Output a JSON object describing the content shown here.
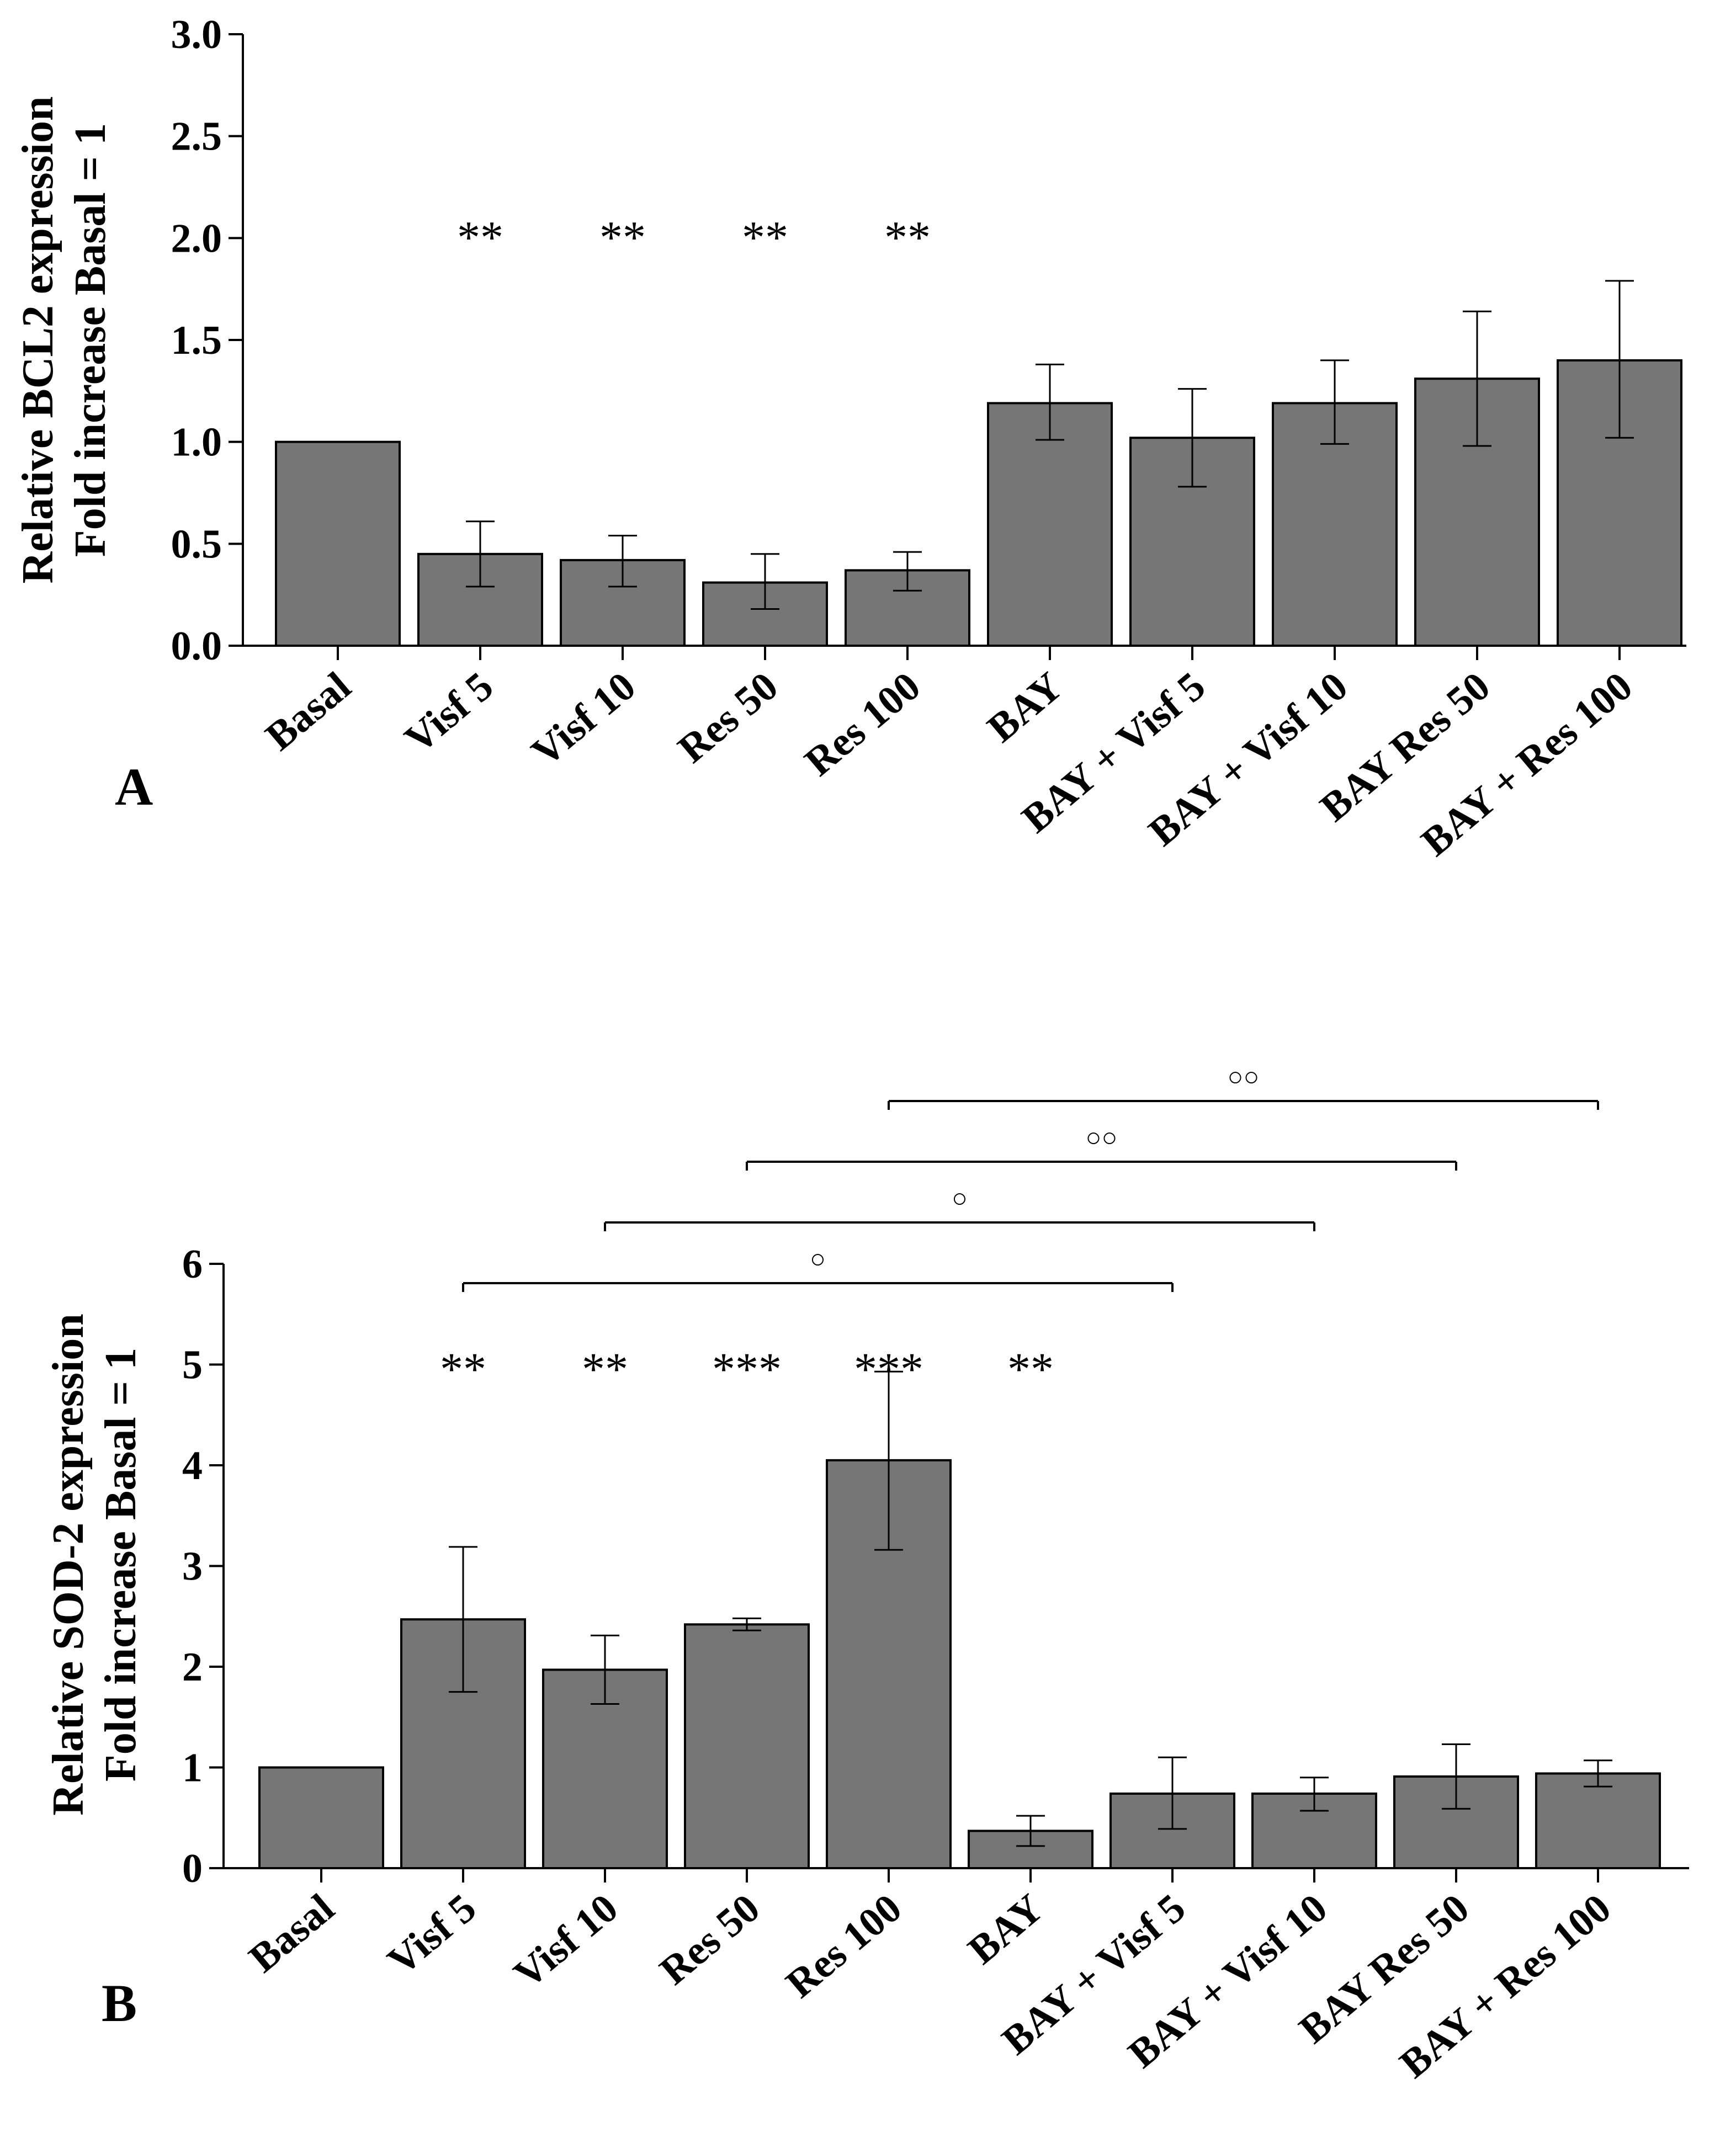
{
  "colors": {
    "bar_fill": "#767676",
    "bar_stroke": "#000000",
    "axis": "#000000"
  },
  "chart_data": [
    {
      "type": "bar",
      "panel_label": "A",
      "ylabel_line1": "Relative BCL2 expression",
      "ylabel_line2": "Fold increase Basal = 1",
      "ylim": [
        0,
        3.0
      ],
      "yticks": [
        0.0,
        0.5,
        1.0,
        1.5,
        2.0,
        2.5,
        3.0
      ],
      "ytick_labels": [
        "0.0",
        "0.5",
        "1.0",
        "1.5",
        "2.0",
        "2.5",
        "3.0"
      ],
      "categories": [
        "Basal",
        "Visf 5",
        "Visf 10",
        "Res 50",
        "Res 100",
        "BAY",
        "BAY + Visf 5",
        "BAY + Visf 10",
        "BAY Res 50",
        "BAY + Res 100"
      ],
      "values": [
        1.0,
        0.45,
        0.42,
        0.31,
        0.37,
        1.19,
        1.02,
        1.19,
        1.31,
        1.4
      ],
      "error_low": [
        null,
        0.29,
        0.29,
        0.18,
        0.27,
        1.01,
        0.78,
        0.99,
        0.98,
        1.02
      ],
      "error_high": [
        null,
        0.61,
        0.54,
        0.45,
        0.46,
        1.38,
        1.26,
        1.4,
        1.64,
        1.79
      ],
      "significance": [
        "",
        "**",
        "**",
        "**",
        "**",
        "",
        "",
        "",
        "",
        ""
      ],
      "significance_y": 2.05,
      "brackets": []
    },
    {
      "type": "bar",
      "panel_label": "B",
      "ylabel_line1": "Relative SOD-2 expression",
      "ylabel_line2": "Fold increase Basal = 1",
      "ylim": [
        0,
        6
      ],
      "yticks": [
        0,
        1,
        2,
        3,
        4,
        5,
        6
      ],
      "ytick_labels": [
        "0",
        "1",
        "2",
        "3",
        "4",
        "5",
        "6"
      ],
      "categories": [
        "Basal",
        "Visf 5",
        "Visf 10",
        "Res 50",
        "Res 100",
        "BAY",
        "BAY + Visf 5",
        "BAY + Visf 10",
        "BAY Res 50",
        "BAY + Res 100"
      ],
      "values": [
        1.0,
        2.47,
        1.97,
        2.42,
        4.05,
        0.37,
        0.74,
        0.74,
        0.91,
        0.94
      ],
      "error_low": [
        null,
        1.75,
        1.63,
        2.36,
        3.16,
        0.22,
        0.39,
        0.57,
        0.59,
        0.81
      ],
      "error_high": [
        null,
        3.19,
        2.31,
        2.48,
        4.93,
        0.52,
        1.1,
        0.9,
        1.23,
        1.07
      ],
      "significance": [
        "",
        "**",
        "**",
        "***",
        "***",
        "**",
        "",
        "",
        "",
        ""
      ],
      "significance_y": 5.05,
      "brackets": [
        {
          "from": 1,
          "to": 6,
          "label": "○"
        },
        {
          "from": 2,
          "to": 7,
          "label": "○"
        },
        {
          "from": 3,
          "to": 8,
          "label": "○○"
        },
        {
          "from": 4,
          "to": 9,
          "label": "○○"
        }
      ]
    }
  ]
}
